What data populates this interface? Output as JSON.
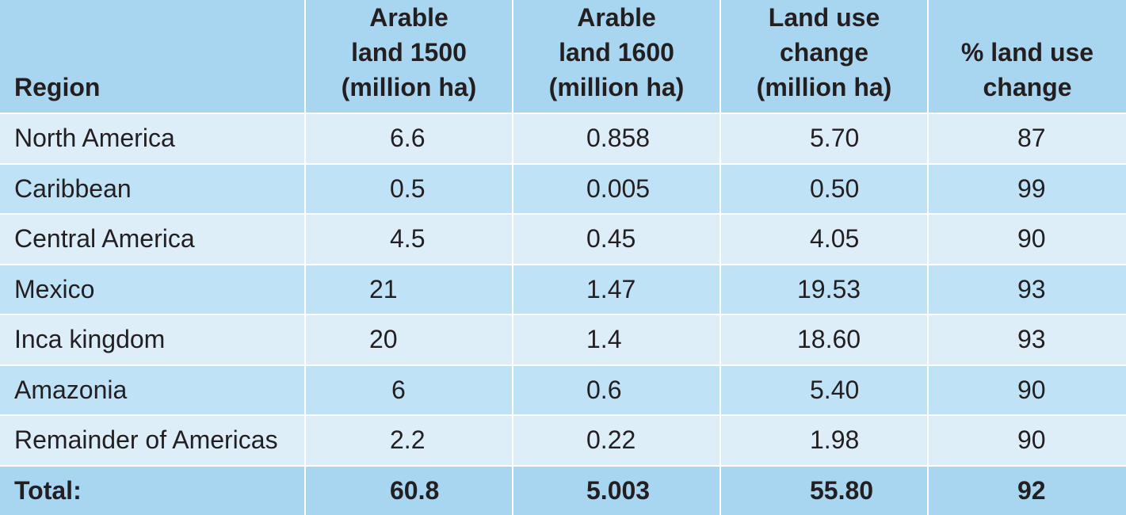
{
  "table": {
    "headers": [
      "Region",
      "Arable land 1500 (million ha)",
      "Arable land 1600 (million ha)",
      "Land use change (million ha)",
      "% land use change"
    ],
    "header_lines": [
      [
        "Region"
      ],
      [
        "Arable",
        "land 1500",
        "(million ha)"
      ],
      [
        "Arable",
        "land 1600",
        "(million ha)"
      ],
      [
        "Land use",
        "change",
        "(million ha)"
      ],
      [
        "% land use",
        "change"
      ]
    ],
    "rows": [
      [
        "North America",
        "6.6",
        "0.858",
        "5.70",
        "87"
      ],
      [
        "Caribbean",
        "0.5",
        "0.005",
        "0.50",
        "99"
      ],
      [
        "Central America",
        "4.5",
        "0.45",
        "4.05",
        "90"
      ],
      [
        "Mexico",
        "21",
        "1.47",
        "19.53",
        "93"
      ],
      [
        "Inca kingdom",
        "20",
        "1.4",
        "18.60",
        "93"
      ],
      [
        "Amazonia",
        "6",
        "0.6",
        "5.40",
        "90"
      ],
      [
        "Remainder of Americas",
        "2.2",
        "0.22",
        "1.98",
        "90"
      ]
    ],
    "total": [
      "Total:",
      "60.8",
      "5.003",
      "55.80",
      "92"
    ]
  },
  "colors": {
    "header_bg": "#a8d5f0",
    "row_light": "#ddeef9",
    "row_dark": "#bfe2f6",
    "total_bg": "#a8d5f0"
  }
}
